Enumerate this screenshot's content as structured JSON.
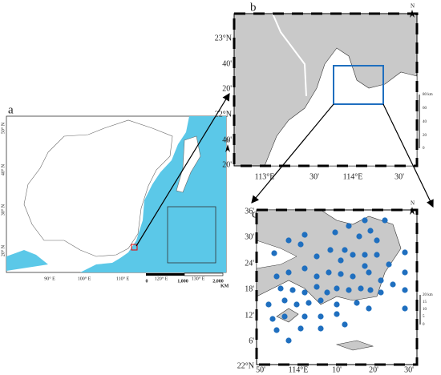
{
  "panel_a": {
    "label": "a",
    "north": "N",
    "lat_labels": [
      "50° N",
      "40° N",
      "30° N",
      "20° N"
    ],
    "lon_labels": [
      "90° E",
      "100° E",
      "110° E",
      "120° E",
      "130° E"
    ],
    "scale_labels": [
      "0",
      "1,000",
      "2,000"
    ],
    "scale_unit": "KM"
  },
  "panel_b": {
    "label": "b",
    "north": "N",
    "lat_labels": [
      "23°N",
      "40'",
      "20'",
      "22°N",
      "40'",
      "20'"
    ],
    "lon_labels": [
      "113°E",
      "30'",
      "114°E",
      "30'"
    ],
    "scale_labels": [
      "80 km",
      "60",
      "40",
      "20",
      "0"
    ]
  },
  "panel_c": {
    "label": "c",
    "north": "N",
    "lat_labels": [
      "36'",
      "30'",
      "24'",
      "18'",
      "12'",
      "6'",
      "22°N"
    ],
    "lon_labels": [
      "50'",
      "114°E",
      "10'",
      "20'",
      "30'"
    ],
    "scale_labels": [
      "20 km",
      "15",
      "10",
      "5",
      "0"
    ]
  }
}
